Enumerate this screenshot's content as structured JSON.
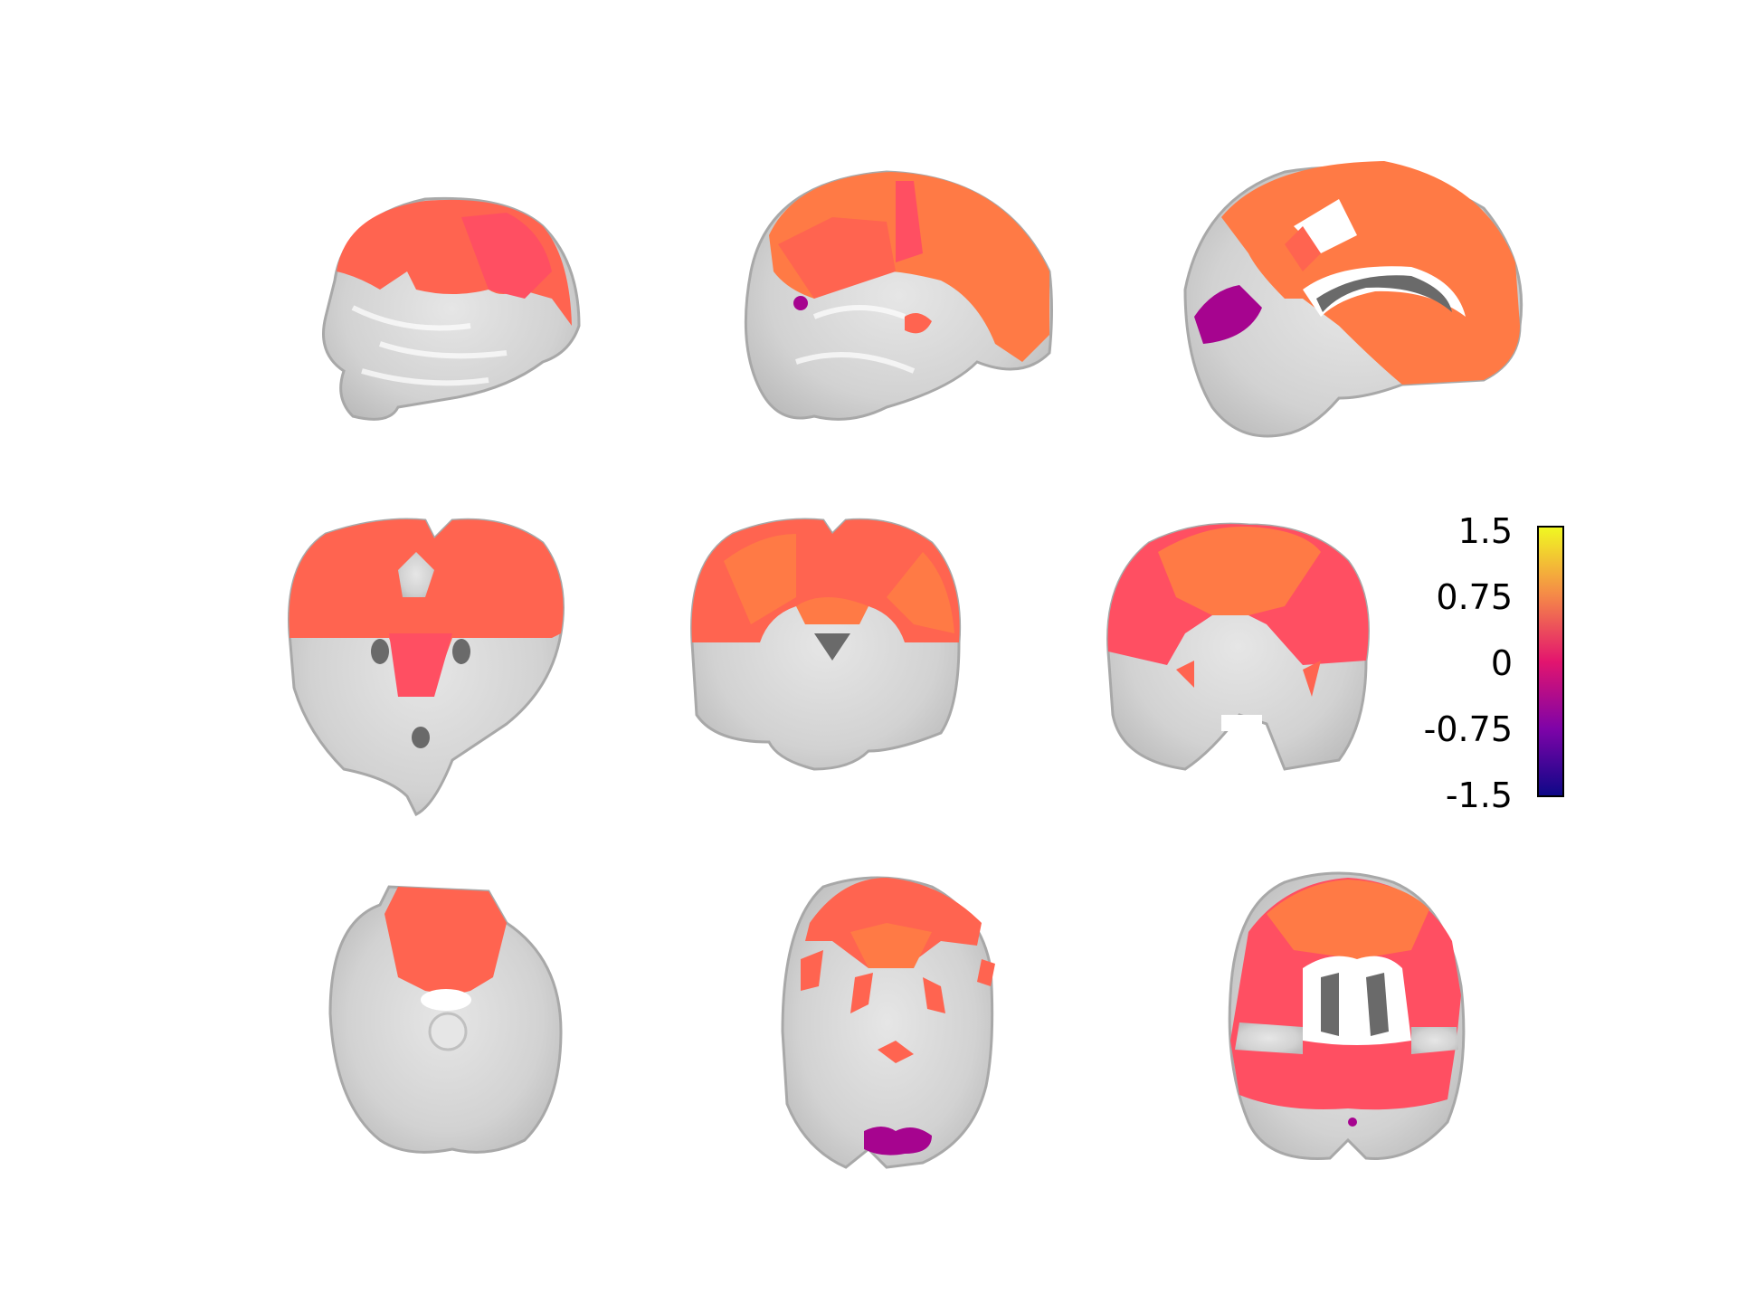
{
  "figure": {
    "panels": [
      {
        "row": 0,
        "col": 0,
        "view": "sagittal"
      },
      {
        "row": 0,
        "col": 1,
        "view": "sagittal"
      },
      {
        "row": 0,
        "col": 2,
        "view": "sagittal"
      },
      {
        "row": 1,
        "col": 0,
        "view": "coronal"
      },
      {
        "row": 1,
        "col": 1,
        "view": "coronal"
      },
      {
        "row": 1,
        "col": 2,
        "view": "coronal"
      },
      {
        "row": 2,
        "col": 0,
        "view": "axial"
      },
      {
        "row": 2,
        "col": 1,
        "view": "axial"
      },
      {
        "row": 2,
        "col": 2,
        "view": "axial"
      }
    ]
  },
  "colorbar": {
    "colormap": "plasma",
    "min": -1.5,
    "max": 1.5,
    "ticks": [
      "1.5",
      "0.75",
      "0",
      "-0.75",
      "-1.5"
    ],
    "colors": {
      "low": "#0d0887",
      "mid_low": "#7e03a8",
      "mid": "#e3156e",
      "mid_high": "#f58b47",
      "high": "#f0f921"
    }
  },
  "overlay_colors": {
    "salmon": "#ff6450",
    "orange": "#ff7a45",
    "rose": "#ff4f62",
    "purple": "#a6048f",
    "brain_gray": "#d4d4d4",
    "brain_dark": "#6a6a6a"
  }
}
